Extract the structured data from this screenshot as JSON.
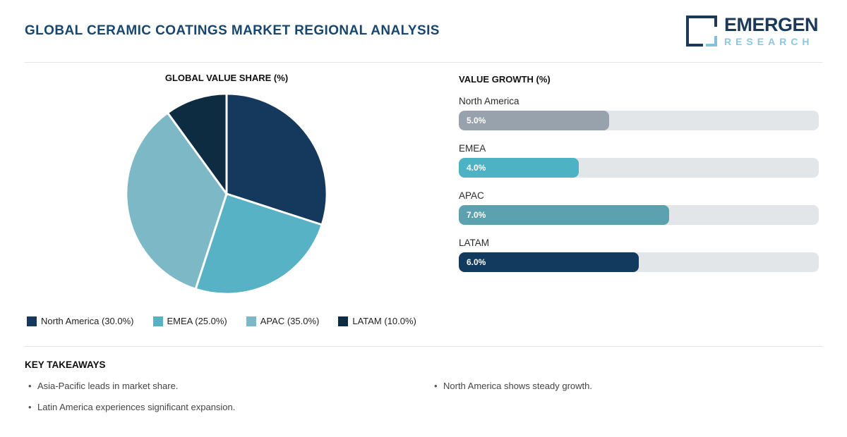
{
  "page": {
    "title": "GLOBAL CERAMIC COATINGS MARKET REGIONAL ANALYSIS"
  },
  "logo": {
    "name": "EMERGEN",
    "subname": "RESEARCH",
    "navy": "#1b3a5a",
    "light_blue": "#7fc2dd",
    "sub_color": "#8cc6e2"
  },
  "colors": {
    "title": "#17466f",
    "divider": "#e4e6e8",
    "bar_track": "#e3e6e9"
  },
  "pie": {
    "title": "GLOBAL VALUE SHARE (%)",
    "slices": [
      {
        "label": "North America",
        "value": 30.0,
        "legend": "North America (30.0%)",
        "color": "#14395c"
      },
      {
        "label": "EMEA",
        "value": 25.0,
        "legend": "EMEA (25.0%)",
        "color": "#56b2c4"
      },
      {
        "label": "APAC",
        "value": 35.0,
        "legend": "APAC (35.0%)",
        "color": "#7db8c6"
      },
      {
        "label": "LATAM",
        "value": 10.0,
        "legend": "LATAM (10.0%)",
        "color": "#0d2c42"
      }
    ]
  },
  "bars": {
    "title": "VALUE GROWTH (%)",
    "scale_max": 12,
    "items": [
      {
        "label": "North America",
        "value": 5.0,
        "display": "5.0%",
        "color": "#98a2ac"
      },
      {
        "label": "EMEA",
        "value": 4.0,
        "display": "4.0%",
        "color": "#4db2c4"
      },
      {
        "label": "APAC",
        "value": 7.0,
        "display": "7.0%",
        "color": "#5ca1b0"
      },
      {
        "label": "LATAM",
        "value": 6.0,
        "display": "6.0%",
        "color": "#123a5e"
      }
    ]
  },
  "takeaways": {
    "title": "KEY TAKEAWAYS",
    "left": [
      "Asia-Pacific leads in market share.",
      "Latin America experiences significant expansion."
    ],
    "right": [
      "North America shows steady growth."
    ]
  },
  "chart_data": [
    {
      "type": "pie",
      "title": "GLOBAL VALUE SHARE (%)",
      "categories": [
        "North America",
        "EMEA",
        "APAC",
        "LATAM"
      ],
      "values": [
        30.0,
        25.0,
        35.0,
        10.0
      ],
      "unit": "%",
      "start_angle_deg": 0,
      "direction": "clockwise",
      "legend_position": "bottom",
      "legend_labels": [
        "North America (30.0%)",
        "EMEA (25.0%)",
        "APAC (35.0%)",
        "LATAM (10.0%)"
      ],
      "colors": [
        "#14395c",
        "#56b2c4",
        "#7db8c6",
        "#0d2c42"
      ]
    },
    {
      "type": "bar",
      "title": "VALUE GROWTH (%)",
      "orientation": "horizontal",
      "categories": [
        "North America",
        "EMEA",
        "APAC",
        "LATAM"
      ],
      "values": [
        5.0,
        4.0,
        7.0,
        6.0
      ],
      "data_labels": [
        "5.0%",
        "4.0%",
        "7.0%",
        "6.0%"
      ],
      "unit": "%",
      "xlim": [
        0,
        12
      ],
      "grid": false,
      "colors": [
        "#98a2ac",
        "#4db2c4",
        "#5ca1b0",
        "#123a5e"
      ]
    }
  ]
}
